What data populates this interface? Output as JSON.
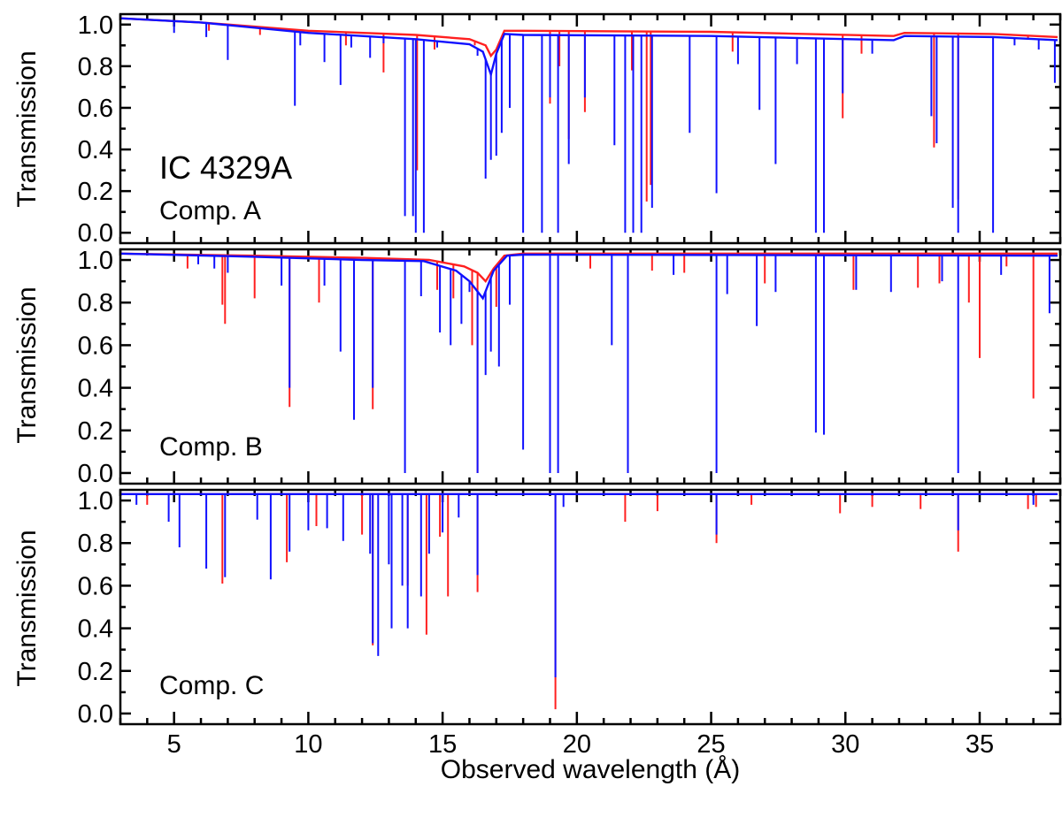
{
  "figure": {
    "xlabel": "Observed wavelength (Å)",
    "xlim": [
      3,
      38
    ],
    "x_major_ticks": [
      5,
      10,
      15,
      20,
      25,
      30,
      35
    ],
    "x_minor_step": 1,
    "colors": {
      "series_red": "#ff2020",
      "series_blue": "#1010ff"
    }
  },
  "chart_data": [
    {
      "type": "line",
      "title": "",
      "annotation_title": "IC 4329A",
      "annotation": "Comp. A",
      "ylabel": "Transmission",
      "ylim": [
        -0.05,
        1.05
      ],
      "yticks": [
        "0.0",
        "0.2",
        "0.4",
        "0.6",
        "0.8",
        "1.0"
      ],
      "series": [
        {
          "color": "#ff2020",
          "continuum": [
            [
              3,
              1.03
            ],
            [
              6,
              1.01
            ],
            [
              10,
              0.97
            ],
            [
              14,
              0.95
            ],
            [
              16,
              0.93
            ],
            [
              16.6,
              0.9
            ],
            [
              16.8,
              0.85
            ],
            [
              17.0,
              0.88
            ],
            [
              17.3,
              0.97
            ],
            [
              18,
              0.97
            ],
            [
              25,
              0.965
            ],
            [
              31.8,
              0.945
            ],
            [
              32.2,
              0.96
            ],
            [
              35.5,
              0.955
            ],
            [
              37.9,
              0.94
            ]
          ],
          "lines": [
            [
              6.3,
              0.97
            ],
            [
              8.2,
              0.95
            ],
            [
              11.4,
              0.9
            ],
            [
              12.8,
              0.77
            ],
            [
              14.05,
              0.3
            ],
            [
              14.7,
              0.88
            ],
            [
              16.2,
              0.9
            ],
            [
              19.0,
              0.62
            ],
            [
              19.35,
              0.8
            ],
            [
              19.7,
              0.45
            ],
            [
              20.3,
              0.58
            ],
            [
              22.05,
              0.78
            ],
            [
              22.6,
              0.15
            ],
            [
              22.75,
              0.23
            ],
            [
              25.8,
              0.87
            ],
            [
              29.9,
              0.55
            ],
            [
              30.6,
              0.86
            ],
            [
              33.3,
              0.41
            ],
            [
              34.2,
              0.16
            ],
            [
              36.8,
              0.93
            ]
          ]
        },
        {
          "color": "#1010ff",
          "continuum": [
            [
              3,
              1.03
            ],
            [
              6,
              1.01
            ],
            [
              10,
              0.96
            ],
            [
              14,
              0.93
            ],
            [
              16,
              0.905
            ],
            [
              16.5,
              0.87
            ],
            [
              16.8,
              0.76
            ],
            [
              17.0,
              0.86
            ],
            [
              17.3,
              0.955
            ],
            [
              18,
              0.95
            ],
            [
              25,
              0.945
            ],
            [
              31.8,
              0.925
            ],
            [
              32.2,
              0.945
            ],
            [
              35.5,
              0.94
            ],
            [
              37.9,
              0.925
            ]
          ],
          "lines": [
            [
              5.0,
              0.96
            ],
            [
              6.2,
              0.94
            ],
            [
              7.0,
              0.83
            ],
            [
              9.5,
              0.61
            ],
            [
              9.7,
              0.9
            ],
            [
              10.6,
              0.82
            ],
            [
              11.2,
              0.71
            ],
            [
              11.6,
              0.89
            ],
            [
              12.3,
              0.84
            ],
            [
              12.8,
              0.91
            ],
            [
              13.6,
              0.08
            ],
            [
              13.9,
              0.08
            ],
            [
              14.0,
              0.0
            ],
            [
              14.3,
              0.0
            ],
            [
              14.8,
              0.89
            ],
            [
              16.3,
              0.85
            ],
            [
              16.6,
              0.26
            ],
            [
              16.8,
              0.35
            ],
            [
              17.0,
              0.37
            ],
            [
              17.2,
              0.48
            ],
            [
              17.5,
              0.6
            ],
            [
              18.0,
              0.0
            ],
            [
              18.7,
              0.0
            ],
            [
              19.0,
              0.65
            ],
            [
              19.3,
              0.0
            ],
            [
              19.7,
              0.33
            ],
            [
              20.3,
              0.65
            ],
            [
              21.4,
              0.42
            ],
            [
              21.8,
              0.0
            ],
            [
              22.1,
              0.0
            ],
            [
              22.4,
              0.0
            ],
            [
              22.8,
              0.12
            ],
            [
              24.2,
              0.48
            ],
            [
              25.2,
              0.19
            ],
            [
              26.0,
              0.81
            ],
            [
              26.8,
              0.59
            ],
            [
              27.4,
              0.33
            ],
            [
              28.2,
              0.81
            ],
            [
              28.9,
              0.0
            ],
            [
              29.2,
              0.0
            ],
            [
              29.9,
              0.67
            ],
            [
              31.0,
              0.86
            ],
            [
              33.2,
              0.56
            ],
            [
              33.4,
              0.43
            ],
            [
              34.0,
              0.12
            ],
            [
              34.2,
              0.0
            ],
            [
              35.5,
              0.0
            ],
            [
              36.3,
              0.9
            ],
            [
              37.2,
              0.88
            ],
            [
              37.8,
              0.72
            ]
          ]
        }
      ]
    },
    {
      "type": "line",
      "title": "",
      "annotation": "Comp. B",
      "ylabel": "Transmission",
      "ylim": [
        -0.05,
        1.05
      ],
      "yticks": [
        "0.0",
        "0.2",
        "0.4",
        "0.6",
        "0.8",
        "1.0"
      ],
      "series": [
        {
          "color": "#ff2020",
          "continuum": [
            [
              3,
              1.03
            ],
            [
              8,
              1.02
            ],
            [
              12,
              1.01
            ],
            [
              14.5,
              1.0
            ],
            [
              15.8,
              0.97
            ],
            [
              16.3,
              0.94
            ],
            [
              16.6,
              0.9
            ],
            [
              16.9,
              0.96
            ],
            [
              17.3,
              1.02
            ],
            [
              18,
              1.03
            ],
            [
              37.9,
              1.03
            ]
          ],
          "lines": [
            [
              5.5,
              0.96
            ],
            [
              6.8,
              0.79
            ],
            [
              6.9,
              0.7
            ],
            [
              8.0,
              0.82
            ],
            [
              9.3,
              0.31
            ],
            [
              10.4,
              0.8
            ],
            [
              12.4,
              0.3
            ],
            [
              14.8,
              0.86
            ],
            [
              15.4,
              0.82
            ],
            [
              16.1,
              0.6
            ],
            [
              16.3,
              0.0
            ],
            [
              17.0,
              0.78
            ],
            [
              20.5,
              0.96
            ],
            [
              22.8,
              0.95
            ],
            [
              24.0,
              0.94
            ],
            [
              27.0,
              0.89
            ],
            [
              30.3,
              0.86
            ],
            [
              32.7,
              0.87
            ],
            [
              33.5,
              0.89
            ],
            [
              34.6,
              0.8
            ],
            [
              35.0,
              0.54
            ],
            [
              36.0,
              0.97
            ],
            [
              37.0,
              0.35
            ]
          ]
        },
        {
          "color": "#1010ff",
          "continuum": [
            [
              3,
              1.03
            ],
            [
              8,
              1.015
            ],
            [
              12,
              1.0
            ],
            [
              14.3,
              0.995
            ],
            [
              15.5,
              0.95
            ],
            [
              16.0,
              0.9
            ],
            [
              16.5,
              0.82
            ],
            [
              16.9,
              0.95
            ],
            [
              17.4,
              1.02
            ],
            [
              18,
              1.025
            ],
            [
              37.9,
              1.02
            ]
          ],
          "lines": [
            [
              5.9,
              0.98
            ],
            [
              6.5,
              0.96
            ],
            [
              7.0,
              0.94
            ],
            [
              9.0,
              0.88
            ],
            [
              9.3,
              0.4
            ],
            [
              10.6,
              0.88
            ],
            [
              11.2,
              0.57
            ],
            [
              11.7,
              0.25
            ],
            [
              12.4,
              0.4
            ],
            [
              13.6,
              0.0
            ],
            [
              14.2,
              0.83
            ],
            [
              14.9,
              0.66
            ],
            [
              15.3,
              0.6
            ],
            [
              15.7,
              0.7
            ],
            [
              16.0,
              0.85
            ],
            [
              16.3,
              0.0
            ],
            [
              16.6,
              0.46
            ],
            [
              16.8,
              0.57
            ],
            [
              17.1,
              0.5
            ],
            [
              17.5,
              0.79
            ],
            [
              18.0,
              0.11
            ],
            [
              19.0,
              0.0
            ],
            [
              19.3,
              0.0
            ],
            [
              21.3,
              0.6
            ],
            [
              21.9,
              0.0
            ],
            [
              23.6,
              0.93
            ],
            [
              25.2,
              0.0
            ],
            [
              25.6,
              0.84
            ],
            [
              26.7,
              0.69
            ],
            [
              27.4,
              0.85
            ],
            [
              28.9,
              0.19
            ],
            [
              29.2,
              0.18
            ],
            [
              30.4,
              0.86
            ],
            [
              31.7,
              0.85
            ],
            [
              33.6,
              0.9
            ],
            [
              34.2,
              0.0
            ],
            [
              35.8,
              0.93
            ],
            [
              37.6,
              0.75
            ]
          ]
        }
      ]
    },
    {
      "type": "line",
      "title": "",
      "annotation": "Comp. C",
      "ylabel": "Transmission",
      "ylim": [
        -0.05,
        1.05
      ],
      "yticks": [
        "0.0",
        "0.2",
        "0.4",
        "0.6",
        "0.8",
        "1.0"
      ],
      "series": [
        {
          "color": "#ff2020",
          "continuum": [
            [
              3,
              1.03
            ],
            [
              37.9,
              1.03
            ]
          ],
          "lines": [
            [
              4.0,
              0.98
            ],
            [
              6.8,
              0.61
            ],
            [
              9.2,
              0.71
            ],
            [
              10.3,
              0.88
            ],
            [
              12.0,
              0.84
            ],
            [
              12.4,
              0.32
            ],
            [
              13.7,
              0.6
            ],
            [
              14.4,
              0.37
            ],
            [
              14.9,
              0.83
            ],
            [
              15.2,
              0.55
            ],
            [
              16.3,
              0.57
            ],
            [
              19.2,
              0.02
            ],
            [
              21.8,
              0.9
            ],
            [
              23.0,
              0.95
            ],
            [
              25.2,
              0.8
            ],
            [
              26.5,
              0.98
            ],
            [
              29.8,
              0.94
            ],
            [
              31.0,
              0.97
            ],
            [
              32.8,
              0.96
            ],
            [
              34.2,
              0.76
            ],
            [
              36.8,
              0.96
            ],
            [
              37.1,
              0.97
            ]
          ]
        },
        {
          "color": "#1010ff",
          "continuum": [
            [
              3,
              1.03
            ],
            [
              37.9,
              1.03
            ]
          ],
          "lines": [
            [
              3.6,
              0.98
            ],
            [
              4.8,
              0.9
            ],
            [
              5.2,
              0.78
            ],
            [
              6.2,
              0.68
            ],
            [
              6.9,
              0.64
            ],
            [
              8.1,
              0.91
            ],
            [
              8.6,
              0.63
            ],
            [
              9.3,
              0.76
            ],
            [
              10.0,
              0.86
            ],
            [
              10.7,
              0.87
            ],
            [
              11.3,
              0.81
            ],
            [
              12.3,
              0.75
            ],
            [
              12.4,
              0.33
            ],
            [
              12.6,
              0.27
            ],
            [
              13.0,
              0.7
            ],
            [
              13.1,
              0.4
            ],
            [
              13.5,
              0.6
            ],
            [
              13.7,
              0.4
            ],
            [
              14.2,
              0.55
            ],
            [
              14.5,
              0.75
            ],
            [
              15.0,
              0.85
            ],
            [
              15.6,
              0.92
            ],
            [
              16.3,
              0.65
            ],
            [
              19.2,
              0.17
            ],
            [
              19.5,
              0.97
            ],
            [
              25.2,
              0.84
            ],
            [
              34.2,
              0.86
            ],
            [
              37.0,
              0.98
            ]
          ]
        }
      ]
    }
  ]
}
